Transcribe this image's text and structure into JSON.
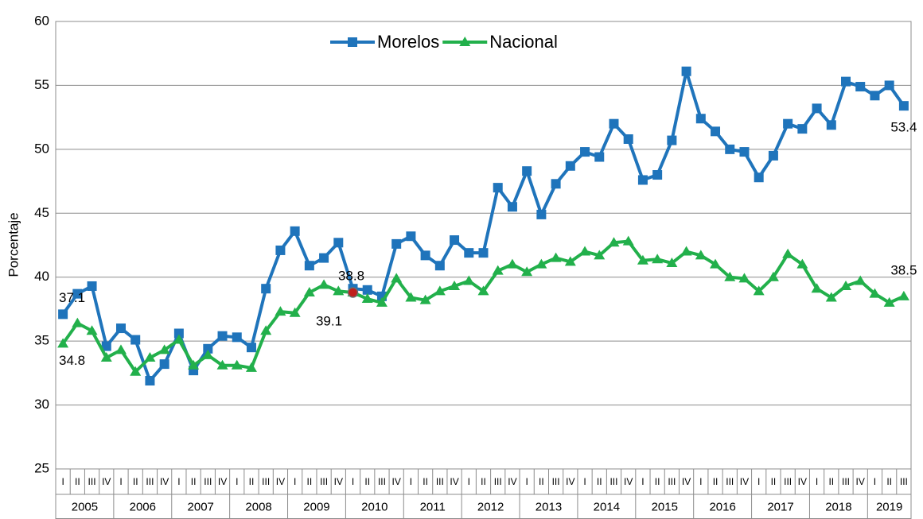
{
  "chart_data": {
    "type": "line",
    "y_axis_label": "Porcentaje",
    "categories": [
      "I",
      "II",
      "III",
      "IV",
      "I",
      "II",
      "III",
      "IV",
      "I",
      "II",
      "III",
      "IV",
      "I",
      "II",
      "III",
      "IV",
      "I",
      "II",
      "III",
      "IV",
      "I",
      "II",
      "III",
      "IV",
      "I",
      "II",
      "III",
      "IV",
      "I",
      "II",
      "III",
      "IV",
      "I",
      "II",
      "III",
      "IV",
      "I",
      "II",
      "III",
      "IV",
      "I",
      "II",
      "III",
      "IV",
      "I",
      "II",
      "III",
      "IV",
      "I",
      "II",
      "III",
      "IV",
      "I",
      "II",
      "III",
      "IV",
      "I",
      "II",
      "III"
    ],
    "years": [
      "2005",
      "2006",
      "2007",
      "2008",
      "2009",
      "2010",
      "2011",
      "2012",
      "2013",
      "2014",
      "2015",
      "2016",
      "2017",
      "2018",
      "2019"
    ],
    "series": [
      {
        "name": "Morelos",
        "color": "#1f74bb",
        "marker": "square",
        "values": [
          37.1,
          38.7,
          39.3,
          34.6,
          36.0,
          35.1,
          31.9,
          33.2,
          35.6,
          32.7,
          34.4,
          35.4,
          35.3,
          34.5,
          39.1,
          42.1,
          43.6,
          40.9,
          41.5,
          42.7,
          39.1,
          39.0,
          38.5,
          42.6,
          43.2,
          41.7,
          40.9,
          42.9,
          41.9,
          41.9,
          47.0,
          45.5,
          48.3,
          44.9,
          47.3,
          48.7,
          49.8,
          49.4,
          52.0,
          50.8,
          47.6,
          48.0,
          50.7,
          56.1,
          52.4,
          51.4,
          50.0,
          49.8,
          47.8,
          49.5,
          52.0,
          51.6,
          53.2,
          51.9,
          55.3,
          54.9,
          54.2,
          55.0,
          53.4
        ]
      },
      {
        "name": "Nacional",
        "color": "#22b04b",
        "marker": "triangle",
        "values": [
          34.8,
          36.4,
          35.8,
          33.7,
          34.3,
          32.6,
          33.7,
          34.3,
          35.1,
          33.1,
          33.9,
          33.1,
          33.1,
          32.9,
          35.8,
          37.3,
          37.2,
          38.8,
          39.4,
          38.9,
          38.8,
          38.3,
          38.0,
          39.9,
          38.4,
          38.2,
          38.9,
          39.3,
          39.7,
          38.9,
          40.5,
          41.0,
          40.4,
          41.0,
          41.5,
          41.2,
          42.0,
          41.7,
          42.7,
          42.8,
          41.3,
          41.4,
          41.1,
          42.0,
          41.7,
          41.0,
          40.0,
          39.9,
          38.9,
          40.0,
          41.8,
          41.0,
          39.1,
          38.4,
          39.3,
          39.7,
          38.7,
          38.0,
          38.5
        ]
      }
    ],
    "ylim": [
      25,
      60
    ],
    "yticks": [
      25,
      30,
      35,
      40,
      45,
      50,
      55,
      60
    ],
    "grid": true,
    "legend": "top"
  }
}
